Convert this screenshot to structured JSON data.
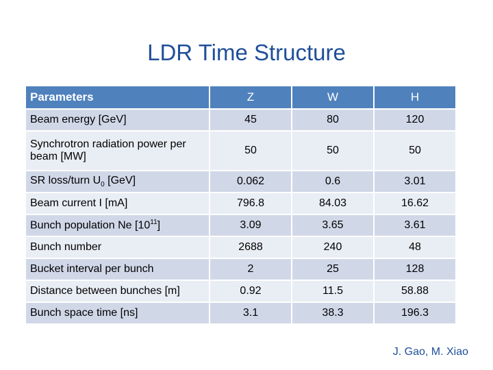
{
  "title": "LDR Time Structure",
  "table": {
    "headers": [
      "Parameters",
      "Z",
      "W",
      "H"
    ],
    "rows": [
      {
        "label": "Beam energy [GeV]",
        "values": [
          "45",
          "80",
          "120"
        ]
      },
      {
        "label": "Synchrotron radiation power per beam [MW]",
        "values": [
          "50",
          "50",
          "50"
        ]
      },
      {
        "label_pre": "SR loss/turn U",
        "label_sub": "0",
        "label_post": " [GeV]",
        "values": [
          "0.062",
          "0.6",
          "3.01"
        ]
      },
      {
        "label": "Beam current I [mA]",
        "values": [
          "796.8",
          "84.03",
          "16.62"
        ]
      },
      {
        "label_pre": "Bunch population Ne [10",
        "label_sup": "11",
        "label_post": "]",
        "values": [
          "3.09",
          "3.65",
          "3.61"
        ]
      },
      {
        "label": "Bunch number",
        "values": [
          "2688",
          "240",
          "48"
        ]
      },
      {
        "label": "Bucket interval per bunch",
        "values": [
          "2",
          "25",
          "128"
        ]
      },
      {
        "label": "Distance between bunches [m]",
        "values": [
          "0.92",
          "11.5",
          "58.88"
        ]
      },
      {
        "label": "Bunch space time [ns]",
        "values": [
          "3.1",
          "38.3",
          "196.3"
        ]
      }
    ]
  },
  "credit": "J. Gao, M. Xiao",
  "colors": {
    "title": "#1F4E9A",
    "header_bg": "#4F81BD",
    "row_dark": "#D0D8E8",
    "row_light": "#E9EDF4"
  }
}
